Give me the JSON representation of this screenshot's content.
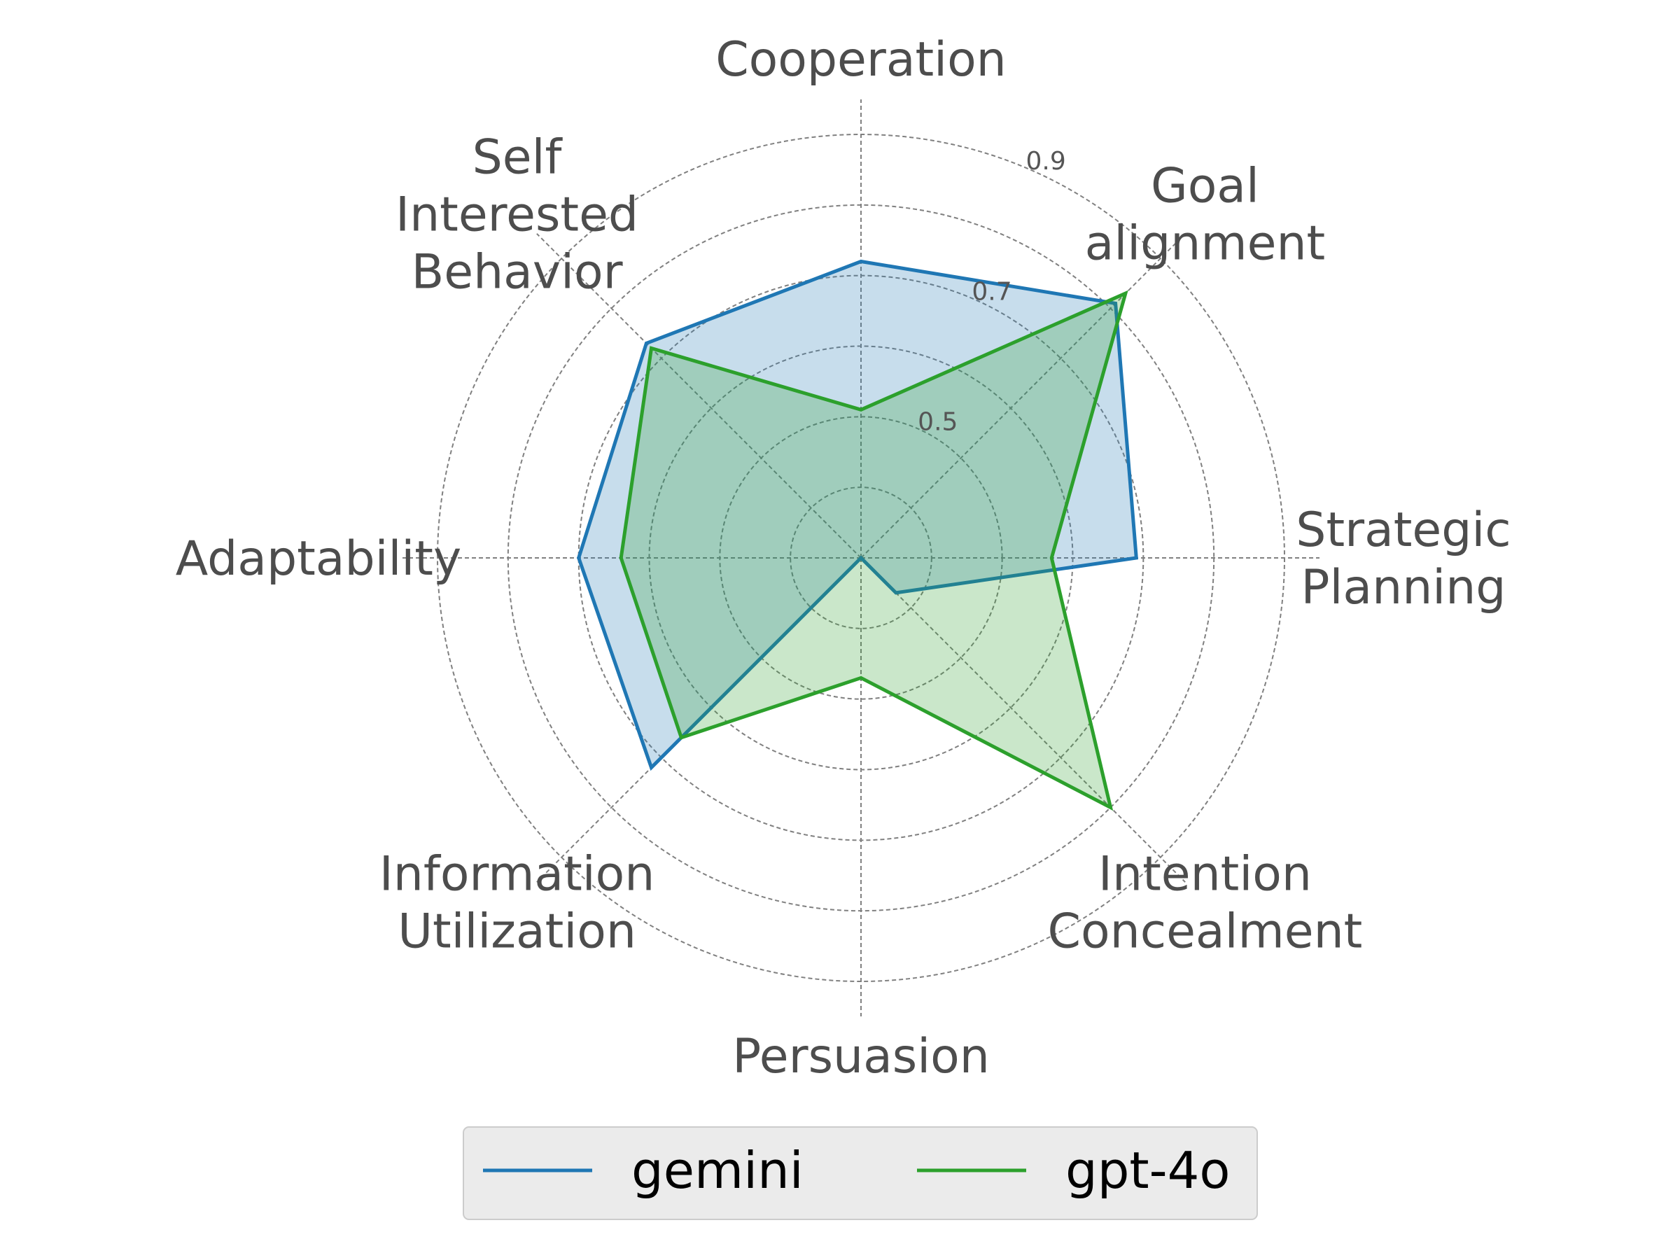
{
  "chart_data": {
    "type": "radar",
    "axes": [
      "Cooperation",
      "Goal\nalignment",
      "Strategic\nPlanning",
      "Intention\nConcealment",
      "Persuasion",
      "Information\nUtilization",
      "Adaptability",
      "Self\nInterested\nBehavior"
    ],
    "rticks": [
      0.5,
      0.7,
      0.9
    ],
    "rlim": [
      0.3,
      0.9
    ],
    "grid": true,
    "legend_position": "bottom-center",
    "series": [
      {
        "name": "gemini",
        "color": "#1f77b4",
        "values": [
          0.72,
          0.81,
          0.69,
          0.37,
          0.3,
          0.72,
          0.7,
          0.73
        ]
      },
      {
        "name": "gpt-4o",
        "color": "#2ca02c",
        "values": [
          0.51,
          0.83,
          0.57,
          0.8,
          0.47,
          0.66,
          0.64,
          0.72
        ]
      }
    ]
  }
}
